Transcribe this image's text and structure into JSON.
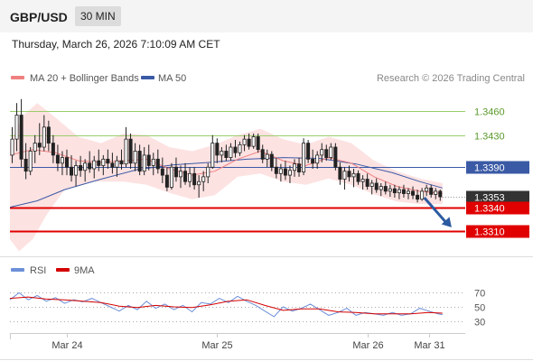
{
  "header": {
    "symbol": "GBP/USD",
    "timeframe": "30 MIN",
    "datetime": "Thursday, March 26, 2026 7:10:09 AM CET"
  },
  "legend": {
    "ma20_label": "MA 20 + Bollinger Bands",
    "ma50_label": "MA 50",
    "credit": "Research © 2026 Trading Central"
  },
  "colors": {
    "ma20": "#f08080",
    "ma50": "#3b5aa6",
    "band_fill": "#fde2e2",
    "candle": "#222222",
    "resistance": "#9acd6a",
    "support": "#e00000",
    "current_line": "#3b5aa6",
    "rsi": "#6c8fd8",
    "rsi_ma": "#d40000",
    "arrow": "#2c5aa0"
  },
  "chart_data": [
    {
      "type": "candlestick",
      "ylim": [
        1.3281,
        1.3486
      ],
      "xlim": [
        0,
        100
      ],
      "x_ticks": [
        {
          "x": 12.5,
          "label": "Mar 24"
        },
        {
          "x": 45.5,
          "label": "Mar 25"
        },
        {
          "x": 78.5,
          "label": "Mar 26"
        },
        {
          "x": 92,
          "label": "Mar 31"
        }
      ],
      "levels": [
        {
          "value": 1.346,
          "label": "1.3460",
          "kind": "resistance"
        },
        {
          "value": 1.343,
          "label": "1.3430",
          "kind": "resistance"
        },
        {
          "value": 1.339,
          "label": "1.3390",
          "kind": "current"
        },
        {
          "value": 1.334,
          "label": "1.3340",
          "kind": "support"
        },
        {
          "value": 1.331,
          "label": "1.3310",
          "kind": "support"
        }
      ],
      "last_price": {
        "value": 1.3353,
        "label": "1.3353"
      },
      "projection": {
        "from": {
          "x": 91,
          "y": 1.3352
        },
        "to": {
          "x": 97,
          "y": 1.3315
        }
      },
      "ohlc": [
        [
          1.3405,
          1.344,
          1.3395,
          1.3425
        ],
        [
          1.3425,
          1.347,
          1.341,
          1.3455
        ],
        [
          1.3455,
          1.3475,
          1.339,
          1.34
        ],
        [
          1.34,
          1.342,
          1.3375,
          1.3385
        ],
        [
          1.3385,
          1.3415,
          1.338,
          1.341
        ],
        [
          1.341,
          1.343,
          1.3395,
          1.342
        ],
        [
          1.342,
          1.3445,
          1.3405,
          1.3415
        ],
        [
          1.3415,
          1.3455,
          1.341,
          1.344
        ],
        [
          1.344,
          1.3448,
          1.341,
          1.342
        ],
        [
          1.342,
          1.343,
          1.3395,
          1.3405
        ],
        [
          1.3405,
          1.3418,
          1.3385,
          1.3395
        ],
        [
          1.3395,
          1.341,
          1.338,
          1.3402
        ],
        [
          1.3402,
          1.3412,
          1.338,
          1.339
        ],
        [
          1.339,
          1.3405,
          1.3372,
          1.338
        ],
        [
          1.338,
          1.3398,
          1.3366,
          1.3392
        ],
        [
          1.3392,
          1.3404,
          1.3378,
          1.3386
        ],
        [
          1.3386,
          1.34,
          1.3372,
          1.3395
        ],
        [
          1.3395,
          1.341,
          1.3383,
          1.3388
        ],
        [
          1.3388,
          1.3404,
          1.3376,
          1.3398
        ],
        [
          1.3398,
          1.3412,
          1.3385,
          1.3392
        ],
        [
          1.3392,
          1.3405,
          1.338,
          1.34
        ],
        [
          1.34,
          1.3412,
          1.3388,
          1.3395
        ],
        [
          1.3395,
          1.3408,
          1.3382,
          1.339
        ],
        [
          1.339,
          1.3404,
          1.3378,
          1.3398
        ],
        [
          1.3398,
          1.3412,
          1.3387,
          1.3394
        ],
        [
          1.3394,
          1.344,
          1.339,
          1.3425
        ],
        [
          1.3425,
          1.3432,
          1.3388,
          1.3395
        ],
        [
          1.3395,
          1.342,
          1.3385,
          1.341
        ],
        [
          1.341,
          1.3418,
          1.338,
          1.3385
        ],
        [
          1.3385,
          1.3415,
          1.338,
          1.3405
        ],
        [
          1.3405,
          1.3418,
          1.3386,
          1.3392
        ],
        [
          1.3392,
          1.3408,
          1.338,
          1.34
        ],
        [
          1.34,
          1.3412,
          1.3382,
          1.3388
        ],
        [
          1.3388,
          1.3402,
          1.337,
          1.338
        ],
        [
          1.338,
          1.339,
          1.336,
          1.3365
        ],
        [
          1.3365,
          1.3395,
          1.3362,
          1.339
        ],
        [
          1.339,
          1.3402,
          1.3372,
          1.3378
        ],
        [
          1.3378,
          1.3392,
          1.3364,
          1.3385
        ],
        [
          1.3385,
          1.3395,
          1.3368,
          1.3372
        ],
        [
          1.3372,
          1.339,
          1.3365,
          1.3382
        ],
        [
          1.3382,
          1.339,
          1.3362,
          1.3368
        ],
        [
          1.3368,
          1.338,
          1.3352,
          1.3372
        ],
        [
          1.3372,
          1.3385,
          1.336,
          1.3378
        ],
        [
          1.3378,
          1.3395,
          1.337,
          1.339
        ],
        [
          1.339,
          1.343,
          1.3388,
          1.342
        ],
        [
          1.342,
          1.3426,
          1.3395,
          1.3405
        ],
        [
          1.3405,
          1.3415,
          1.3396,
          1.341
        ],
        [
          1.341,
          1.3418,
          1.3398,
          1.3402
        ],
        [
          1.3402,
          1.342,
          1.3398,
          1.3415
        ],
        [
          1.3415,
          1.3424,
          1.3402,
          1.3408
        ],
        [
          1.3408,
          1.3422,
          1.3404,
          1.3418
        ],
        [
          1.3418,
          1.343,
          1.341,
          1.3425
        ],
        [
          1.3425,
          1.3432,
          1.3412,
          1.3416
        ],
        [
          1.3416,
          1.3432,
          1.3413,
          1.3428
        ],
        [
          1.3428,
          1.3432,
          1.3408,
          1.3412
        ],
        [
          1.3412,
          1.3418,
          1.3395,
          1.34
        ],
        [
          1.34,
          1.3412,
          1.339,
          1.3406
        ],
        [
          1.3406,
          1.341,
          1.3385,
          1.339
        ],
        [
          1.339,
          1.3402,
          1.3376,
          1.3382
        ],
        [
          1.3382,
          1.3394,
          1.3372,
          1.3388
        ],
        [
          1.3388,
          1.3398,
          1.3374,
          1.338
        ],
        [
          1.338,
          1.3392,
          1.337,
          1.3386
        ],
        [
          1.3386,
          1.34,
          1.3378,
          1.3394
        ],
        [
          1.3394,
          1.3402,
          1.3378,
          1.3384
        ],
        [
          1.3384,
          1.3426,
          1.338,
          1.342
        ],
        [
          1.342,
          1.3424,
          1.3395,
          1.34
        ],
        [
          1.34,
          1.3412,
          1.3388,
          1.3395
        ],
        [
          1.3395,
          1.341,
          1.3388,
          1.3405
        ],
        [
          1.3405,
          1.342,
          1.3396,
          1.3412
        ],
        [
          1.3412,
          1.3418,
          1.3398,
          1.3402
        ],
        [
          1.3402,
          1.342,
          1.3399,
          1.3415
        ],
        [
          1.3415,
          1.342,
          1.3386,
          1.339
        ],
        [
          1.339,
          1.3396,
          1.3368,
          1.3375
        ],
        [
          1.3375,
          1.339,
          1.3362,
          1.3385
        ],
        [
          1.3385,
          1.3392,
          1.3372,
          1.3378
        ],
        [
          1.3378,
          1.3388,
          1.3365,
          1.3382
        ],
        [
          1.3382,
          1.3386,
          1.3368,
          1.3372
        ],
        [
          1.3372,
          1.338,
          1.3362,
          1.3375
        ],
        [
          1.3375,
          1.3382,
          1.3362,
          1.3366
        ],
        [
          1.3366,
          1.3374,
          1.3356,
          1.337
        ],
        [
          1.337,
          1.3376,
          1.3358,
          1.3362
        ],
        [
          1.3362,
          1.337,
          1.3354,
          1.3366
        ],
        [
          1.3366,
          1.3372,
          1.3356,
          1.336
        ],
        [
          1.336,
          1.3368,
          1.3353,
          1.3363
        ],
        [
          1.3363,
          1.3368,
          1.3352,
          1.3358
        ],
        [
          1.3358,
          1.3366,
          1.335,
          1.3362
        ],
        [
          1.3362,
          1.3368,
          1.3352,
          1.3357
        ],
        [
          1.3357,
          1.3364,
          1.335,
          1.336
        ],
        [
          1.336,
          1.3366,
          1.335,
          1.3355
        ],
        [
          1.3355,
          1.3362,
          1.3346,
          1.335
        ],
        [
          1.335,
          1.3364,
          1.3348,
          1.336
        ],
        [
          1.336,
          1.3368,
          1.3354,
          1.3364
        ],
        [
          1.3364,
          1.3368,
          1.3352,
          1.3356
        ],
        [
          1.3356,
          1.3364,
          1.335,
          1.336
        ],
        [
          1.336,
          1.3362,
          1.3348,
          1.3353
        ]
      ],
      "ma20": [
        [
          0,
          1.3405
        ],
        [
          5,
          1.3412
        ],
        [
          10,
          1.3408
        ],
        [
          15,
          1.3398
        ],
        [
          20,
          1.3396
        ],
        [
          25,
          1.3398
        ],
        [
          30,
          1.34
        ],
        [
          35,
          1.3388
        ],
        [
          40,
          1.338
        ],
        [
          45,
          1.3385
        ],
        [
          50,
          1.34
        ],
        [
          55,
          1.341
        ],
        [
          60,
          1.3398
        ],
        [
          65,
          1.3392
        ],
        [
          70,
          1.3402
        ],
        [
          75,
          1.3395
        ],
        [
          80,
          1.3378
        ],
        [
          85,
          1.3366
        ],
        [
          90,
          1.336
        ],
        [
          95,
          1.3357
        ]
      ],
      "bollinger_upper": [
        [
          0,
          1.342
        ],
        [
          3,
          1.3455
        ],
        [
          6,
          1.347
        ],
        [
          10,
          1.3452
        ],
        [
          15,
          1.3428
        ],
        [
          20,
          1.342
        ],
        [
          25,
          1.3432
        ],
        [
          30,
          1.343
        ],
        [
          35,
          1.3415
        ],
        [
          40,
          1.341
        ],
        [
          45,
          1.3418
        ],
        [
          50,
          1.343
        ],
        [
          55,
          1.3438
        ],
        [
          60,
          1.3425
        ],
        [
          65,
          1.3418
        ],
        [
          70,
          1.3428
        ],
        [
          75,
          1.342
        ],
        [
          80,
          1.3398
        ],
        [
          85,
          1.3385
        ],
        [
          90,
          1.3376
        ],
        [
          95,
          1.337
        ]
      ],
      "bollinger_lower": [
        [
          0,
          1.33
        ],
        [
          2,
          1.3285
        ],
        [
          5,
          1.33
        ],
        [
          8,
          1.333
        ],
        [
          12,
          1.3362
        ],
        [
          18,
          1.3372
        ],
        [
          25,
          1.3372
        ],
        [
          30,
          1.3368
        ],
        [
          35,
          1.3358
        ],
        [
          40,
          1.335
        ],
        [
          45,
          1.3355
        ],
        [
          50,
          1.3378
        ],
        [
          55,
          1.3382
        ],
        [
          60,
          1.3372
        ],
        [
          65,
          1.3368
        ],
        [
          70,
          1.3376
        ],
        [
          75,
          1.3368
        ],
        [
          80,
          1.3356
        ],
        [
          85,
          1.3347
        ],
        [
          90,
          1.3344
        ],
        [
          95,
          1.3344
        ]
      ],
      "ma50": [
        [
          0,
          1.334
        ],
        [
          6,
          1.3348
        ],
        [
          12,
          1.3362
        ],
        [
          20,
          1.3375
        ],
        [
          28,
          1.3387
        ],
        [
          36,
          1.3393
        ],
        [
          44,
          1.3396
        ],
        [
          52,
          1.34
        ],
        [
          60,
          1.3402
        ],
        [
          68,
          1.3401
        ],
        [
          76,
          1.3394
        ],
        [
          84,
          1.3383
        ],
        [
          90,
          1.3372
        ],
        [
          95,
          1.3364
        ]
      ]
    },
    {
      "type": "line",
      "ylim": [
        18,
        82
      ],
      "xlim": [
        0,
        100
      ],
      "y_ticks": [
        70,
        50,
        30
      ],
      "series": [
        {
          "name": "RSI",
          "points": [
            [
              0,
              60
            ],
            [
              2,
              70
            ],
            [
              4,
              60
            ],
            [
              6,
              66
            ],
            [
              8,
              58
            ],
            [
              10,
              63
            ],
            [
              12,
              55
            ],
            [
              14,
              60
            ],
            [
              16,
              57
            ],
            [
              18,
              62
            ],
            [
              20,
              56
            ],
            [
              22,
              50
            ],
            [
              24,
              44
            ],
            [
              26,
              52
            ],
            [
              28,
              46
            ],
            [
              30,
              58
            ],
            [
              32,
              48
            ],
            [
              34,
              54
            ],
            [
              36,
              46
            ],
            [
              38,
              52
            ],
            [
              40,
              43
            ],
            [
              42,
              56
            ],
            [
              44,
              54
            ],
            [
              46,
              62
            ],
            [
              48,
              56
            ],
            [
              50,
              65
            ],
            [
              52,
              58
            ],
            [
              54,
              52
            ],
            [
              56,
              44
            ],
            [
              58,
              36
            ],
            [
              60,
              50
            ],
            [
              62,
              44
            ],
            [
              64,
              48
            ],
            [
              66,
              54
            ],
            [
              68,
              46
            ],
            [
              70,
              38
            ],
            [
              72,
              42
            ],
            [
              74,
              48
            ],
            [
              76,
              38
            ],
            [
              78,
              42
            ],
            [
              80,
              40
            ],
            [
              82,
              38
            ],
            [
              84,
              42
            ],
            [
              86,
              38
            ],
            [
              88,
              40
            ],
            [
              90,
              48
            ],
            [
              92,
              44
            ],
            [
              94,
              40
            ],
            [
              95,
              39
            ]
          ]
        },
        {
          "name": "9MA",
          "points": [
            [
              0,
              62
            ],
            [
              4,
              64
            ],
            [
              8,
              61
            ],
            [
              12,
              60
            ],
            [
              16,
              58
            ],
            [
              20,
              56
            ],
            [
              24,
              51
            ],
            [
              28,
              49
            ],
            [
              32,
              52
            ],
            [
              36,
              50
            ],
            [
              40,
              49
            ],
            [
              44,
              53
            ],
            [
              48,
              58
            ],
            [
              52,
              60
            ],
            [
              56,
              52
            ],
            [
              60,
              45
            ],
            [
              64,
              47
            ],
            [
              68,
              47
            ],
            [
              72,
              43
            ],
            [
              76,
              42
            ],
            [
              80,
              40
            ],
            [
              84,
              40
            ],
            [
              88,
              40
            ],
            [
              92,
              42
            ],
            [
              95,
              41
            ]
          ]
        }
      ]
    }
  ]
}
